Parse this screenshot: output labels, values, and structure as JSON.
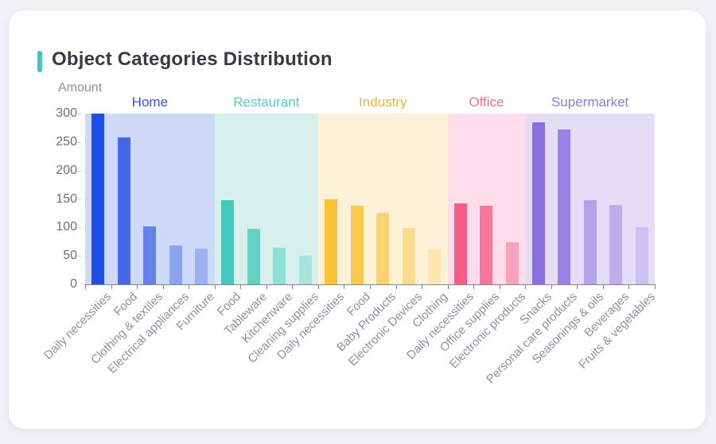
{
  "page": {
    "accent_color": "#3fc8bd",
    "background_color": "#f0f1f4",
    "card_color": "#ffffff"
  },
  "chart_data": {
    "type": "bar",
    "title": "Object Categories Distribution",
    "ylabel": "Amount",
    "ylim": [
      0,
      300
    ],
    "yticks": [
      0,
      50,
      100,
      150,
      200,
      250,
      300
    ],
    "legend_position": "group labels above band areas",
    "grid": false,
    "groups": [
      {
        "name": "Home",
        "label_color": "#2d51e8",
        "band_color": "#cdd9f6",
        "bars": [
          {
            "label": "Daily necessities",
            "value": 300,
            "color": "#1d4fe4"
          },
          {
            "label": "Food",
            "value": 258,
            "color": "#4468e7"
          },
          {
            "label": "Clothing & textiles",
            "value": 102,
            "color": "#6383ea"
          },
          {
            "label": "Electrical appliances",
            "value": 68,
            "color": "#8ba4ef"
          },
          {
            "label": "Furniture",
            "value": 63,
            "color": "#9cb2f0"
          }
        ]
      },
      {
        "name": "Restaurant",
        "label_color": "#4fd0c2",
        "band_color": "#d7f0ed",
        "bars": [
          {
            "label": "Food",
            "value": 148,
            "color": "#45c8bc"
          },
          {
            "label": "Tableware",
            "value": 97,
            "color": "#64d1c7"
          },
          {
            "label": "Kitchenware",
            "value": 64,
            "color": "#8fdfd7"
          },
          {
            "label": "Cleaning supplies",
            "value": 50,
            "color": "#a5e5de"
          }
        ]
      },
      {
        "name": "Industry",
        "label_color": "#e9b449",
        "band_color": "#fdf2d8",
        "bars": [
          {
            "label": "Daily necessities",
            "value": 150,
            "color": "#f9c237"
          },
          {
            "label": "Food",
            "value": 138,
            "color": "#fac94f"
          },
          {
            "label": "Baby Products",
            "value": 126,
            "color": "#fbd470"
          },
          {
            "label": "Electronic Devices",
            "value": 99,
            "color": "#fcdd90"
          },
          {
            "label": "Clothing",
            "value": 62,
            "color": "#fde7ae"
          }
        ]
      },
      {
        "name": "Office",
        "label_color": "#f56e96",
        "band_color": "#fcdde9",
        "bars": [
          {
            "label": "Daily necessities",
            "value": 142,
            "color": "#f65d85"
          },
          {
            "label": "Office supplies",
            "value": 138,
            "color": "#f8789b"
          },
          {
            "label": "Electronic products",
            "value": 74,
            "color": "#faa2bb"
          }
        ]
      },
      {
        "name": "Supermarket",
        "label_color": "#8f7ae0",
        "band_color": "#e3ddf7",
        "bars": [
          {
            "label": "Snacks",
            "value": 285,
            "color": "#8a6fdf"
          },
          {
            "label": "Personal care products",
            "value": 272,
            "color": "#9a82e4"
          },
          {
            "label": "Seasonings & oils",
            "value": 148,
            "color": "#b3a3ec"
          },
          {
            "label": "Beverages",
            "value": 140,
            "color": "#bcaeee"
          },
          {
            "label": "Fruits & vegetables",
            "value": 101,
            "color": "#cdc1f2"
          }
        ]
      }
    ]
  }
}
